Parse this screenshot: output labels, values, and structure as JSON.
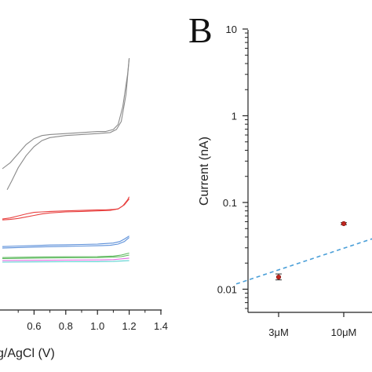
{
  "chart_data": [
    {
      "type": "line",
      "xlabel": "g/AgCl (V)",
      "ylabel": "",
      "xlim": [
        0.4,
        1.4
      ],
      "xticks": [
        "0.6",
        "0.8",
        "1.0",
        "1.2",
        "1.4"
      ],
      "grid": false,
      "series": [
        {
          "color": "#8a8a8a",
          "segments": [
            {
              "x": [
                0.4,
                0.45,
                0.5,
                0.55,
                0.6,
                0.65,
                0.7,
                0.8,
                0.9,
                1.0,
                1.05,
                1.1,
                1.13,
                1.16,
                1.19,
                1.2
              ],
              "y": [
                0.68,
                0.74,
                0.83,
                0.92,
                0.98,
                1.01,
                1.02,
                1.03,
                1.04,
                1.05,
                1.05,
                1.07,
                1.12,
                1.3,
                1.62,
                1.78
              ]
            },
            {
              "x": [
                0.43,
                0.46,
                0.5,
                0.55,
                0.6,
                0.65,
                0.7,
                0.8,
                0.9,
                1.0,
                1.08,
                1.12,
                1.15,
                1.18,
                1.2
              ],
              "y": [
                0.47,
                0.56,
                0.69,
                0.81,
                0.9,
                0.96,
                0.99,
                1.01,
                1.02,
                1.03,
                1.04,
                1.07,
                1.15,
                1.42,
                1.78
              ]
            }
          ]
        },
        {
          "color": "#e8403f",
          "segments": [
            {
              "x": [
                0.4,
                0.45,
                0.5,
                0.55,
                0.6,
                0.65,
                0.7,
                0.8,
                0.9,
                1.0,
                1.05,
                1.1,
                1.13,
                1.16,
                1.19,
                1.2
              ],
              "y": [
                0.18,
                0.19,
                0.21,
                0.23,
                0.245,
                0.25,
                0.255,
                0.26,
                0.265,
                0.27,
                0.27,
                0.275,
                0.28,
                0.31,
                0.37,
                0.4
              ]
            },
            {
              "x": [
                0.4,
                0.45,
                0.5,
                0.55,
                0.6,
                0.65,
                0.7,
                0.8,
                0.9,
                1.0,
                1.08,
                1.13,
                1.17,
                1.2
              ],
              "y": [
                0.17,
                0.175,
                0.185,
                0.2,
                0.215,
                0.23,
                0.24,
                0.25,
                0.255,
                0.26,
                0.265,
                0.28,
                0.32,
                0.38
              ]
            }
          ]
        },
        {
          "color": "#5b8fd9",
          "segments": [
            {
              "x": [
                0.4,
                0.5,
                0.6,
                0.7,
                0.8,
                0.9,
                1.0,
                1.05,
                1.1,
                1.14,
                1.17,
                1.2
              ],
              "y": [
                -0.095,
                -0.09,
                -0.085,
                -0.08,
                -0.077,
                -0.074,
                -0.07,
                -0.065,
                -0.06,
                -0.045,
                -0.02,
                0.01
              ]
            },
            {
              "x": [
                0.4,
                0.5,
                0.6,
                0.7,
                0.8,
                0.9,
                1.0,
                1.08,
                1.13,
                1.17,
                1.2
              ],
              "y": [
                -0.11,
                -0.105,
                -0.1,
                -0.096,
                -0.093,
                -0.09,
                -0.087,
                -0.083,
                -0.07,
                -0.045,
                -0.005
              ]
            }
          ]
        },
        {
          "color": "#5cb85c",
          "segments": [
            {
              "x": [
                0.4,
                0.6,
                0.8,
                1.0,
                1.1,
                1.15,
                1.2
              ],
              "y": [
                -0.205,
                -0.2,
                -0.197,
                -0.195,
                -0.19,
                -0.18,
                -0.16
              ]
            },
            {
              "x": [
                0.4,
                0.6,
                0.8,
                1.0,
                1.1,
                1.15,
                1.2
              ],
              "y": [
                -0.215,
                -0.21,
                -0.207,
                -0.205,
                -0.2,
                -0.195,
                -0.18
              ]
            }
          ]
        },
        {
          "color": "#e06be0",
          "segments": [
            {
              "x": [
                0.4,
                0.6,
                0.8,
                1.0,
                1.1,
                1.2
              ],
              "y": [
                -0.235,
                -0.232,
                -0.23,
                -0.228,
                -0.225,
                -0.21
              ]
            }
          ]
        },
        {
          "color": "#5ad1d1",
          "segments": [
            {
              "x": [
                0.4,
                0.6,
                0.8,
                1.0,
                1.1,
                1.2
              ],
              "y": [
                -0.25,
                -0.248,
                -0.246,
                -0.245,
                -0.243,
                -0.235
              ]
            }
          ]
        }
      ]
    },
    {
      "type": "scatter",
      "panel_label": "B",
      "ylabel": "Current (nA)",
      "yscale": "log",
      "ylim": [
        0.006,
        10
      ],
      "yticks": [
        0.01,
        0.1,
        1,
        10
      ],
      "ytick_labels": [
        "0.01",
        "0.1",
        "1",
        "10"
      ],
      "categories": [
        "3μM",
        "10μM"
      ],
      "points": [
        {
          "category": "3μM",
          "y": 0.0138,
          "err_low": 0.0128,
          "err_high": 0.015,
          "color": "#c0261f"
        },
        {
          "category": "10μM",
          "y": 0.057,
          "err_low": 0.0555,
          "err_high": 0.0585,
          "color": "#c0261f"
        }
      ],
      "fit_line": {
        "style": "dashed",
        "color": "#4a9fd8",
        "x": [
          -0.65,
          3.2
        ],
        "y": [
          0.0115,
          0.105
        ]
      }
    }
  ]
}
